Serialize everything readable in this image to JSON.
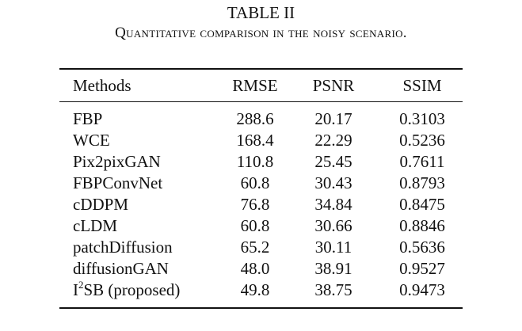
{
  "caption": {
    "label": "TABLE II",
    "title": "Quantitative comparison in the noisy scenario."
  },
  "table": {
    "header": [
      "Methods",
      "RMSE",
      "PSNR",
      "SSIM"
    ],
    "rows": [
      [
        "FBP",
        "288.6",
        "20.17",
        "0.3103"
      ],
      [
        "WCE",
        "168.4",
        "22.29",
        "0.5236"
      ],
      [
        "Pix2pixGAN",
        "110.8",
        "25.45",
        "0.7611"
      ],
      [
        "FBPConvNet",
        "60.8",
        "30.43",
        "0.8793"
      ],
      [
        "cDDPM",
        "76.8",
        "34.84",
        "0.8475"
      ],
      [
        "cLDM",
        "60.8",
        "30.66",
        "0.8846"
      ],
      [
        "patchDiffusion",
        "65.2",
        "30.11",
        "0.5636"
      ],
      [
        "diffusionGAN",
        "48.0",
        "38.91",
        "0.9527"
      ],
      [
        {
          "text": "I",
          "sup": "2",
          "rest": "SB (proposed)"
        },
        "49.8",
        "38.75",
        "0.9473"
      ]
    ]
  }
}
